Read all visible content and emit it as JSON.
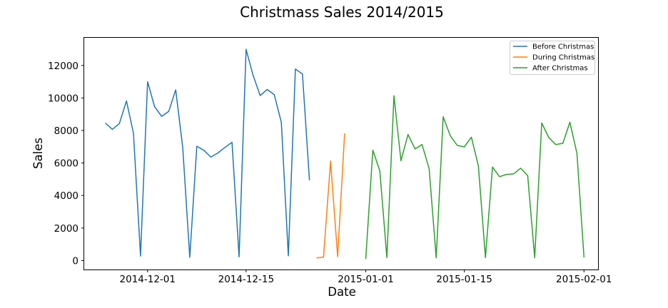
{
  "chart_data": {
    "type": "line",
    "title": "Christmass Sales 2014/2015",
    "xlabel": "Date",
    "ylabel": "Sales",
    "x_ticks": [
      "2014-12-01",
      "2014-12-15",
      "2015-01-01",
      "2015-01-15",
      "2015-02-01"
    ],
    "y_ticks": [
      0,
      2000,
      4000,
      6000,
      8000,
      10000,
      12000
    ],
    "xlim": [
      "2014-11-22",
      "2015-02-03"
    ],
    "ylim": [
      -550,
      13700
    ],
    "grid": false,
    "legend_position": "top-right",
    "series": [
      {
        "name": "Before Christmas",
        "color": "#1f77b4",
        "points": [
          [
            "2014-11-25",
            8450
          ],
          [
            "2014-11-26",
            8070
          ],
          [
            "2014-11-27",
            8430
          ],
          [
            "2014-11-28",
            9820
          ],
          [
            "2014-11-29",
            7830
          ],
          [
            "2014-11-30",
            280
          ],
          [
            "2014-12-01",
            11000
          ],
          [
            "2014-12-02",
            9470
          ],
          [
            "2014-12-03",
            8870
          ],
          [
            "2014-12-04",
            9170
          ],
          [
            "2014-12-05",
            10500
          ],
          [
            "2014-12-06",
            6930
          ],
          [
            "2014-12-07",
            200
          ],
          [
            "2014-12-08",
            7030
          ],
          [
            "2014-12-09",
            6780
          ],
          [
            "2014-12-10",
            6360
          ],
          [
            "2014-12-11",
            6620
          ],
          [
            "2014-12-12",
            6960
          ],
          [
            "2014-12-13",
            7270
          ],
          [
            "2014-12-14",
            230
          ],
          [
            "2014-12-15",
            12990
          ],
          [
            "2014-12-16",
            11380
          ],
          [
            "2014-12-17",
            10150
          ],
          [
            "2014-12-18",
            10520
          ],
          [
            "2014-12-19",
            10200
          ],
          [
            "2014-12-20",
            8500
          ],
          [
            "2014-12-21",
            290
          ],
          [
            "2014-12-22",
            11780
          ],
          [
            "2014-12-23",
            11470
          ],
          [
            "2014-12-24",
            4940
          ]
        ]
      },
      {
        "name": "During Christmas",
        "color": "#ff7f0e",
        "points": [
          [
            "2014-12-25",
            160
          ],
          [
            "2014-12-26",
            210
          ],
          [
            "2014-12-27",
            6120
          ],
          [
            "2014-12-28",
            240
          ],
          [
            "2014-12-29",
            7820
          ]
        ]
      },
      {
        "name": "After Christmas",
        "color": "#2ca02c",
        "points": [
          [
            "2015-01-01",
            100
          ],
          [
            "2015-01-02",
            6790
          ],
          [
            "2015-01-03",
            5520
          ],
          [
            "2015-01-04",
            180
          ],
          [
            "2015-01-05",
            10140
          ],
          [
            "2015-01-06",
            6140
          ],
          [
            "2015-01-07",
            7750
          ],
          [
            "2015-01-08",
            6870
          ],
          [
            "2015-01-09",
            7130
          ],
          [
            "2015-01-10",
            5650
          ],
          [
            "2015-01-11",
            170
          ],
          [
            "2015-01-12",
            8840
          ],
          [
            "2015-01-13",
            7680
          ],
          [
            "2015-01-14",
            7080
          ],
          [
            "2015-01-15",
            6990
          ],
          [
            "2015-01-16",
            7590
          ],
          [
            "2015-01-17",
            5820
          ],
          [
            "2015-01-18",
            180
          ],
          [
            "2015-01-19",
            5750
          ],
          [
            "2015-01-20",
            5160
          ],
          [
            "2015-01-21",
            5300
          ],
          [
            "2015-01-22",
            5330
          ],
          [
            "2015-01-23",
            5680
          ],
          [
            "2015-01-24",
            5220
          ],
          [
            "2015-01-25",
            170
          ],
          [
            "2015-01-26",
            8460
          ],
          [
            "2015-01-27",
            7560
          ],
          [
            "2015-01-28",
            7130
          ],
          [
            "2015-01-29",
            7210
          ],
          [
            "2015-01-30",
            8510
          ],
          [
            "2015-01-31",
            6600
          ],
          [
            "2015-02-01",
            190
          ]
        ]
      }
    ]
  }
}
